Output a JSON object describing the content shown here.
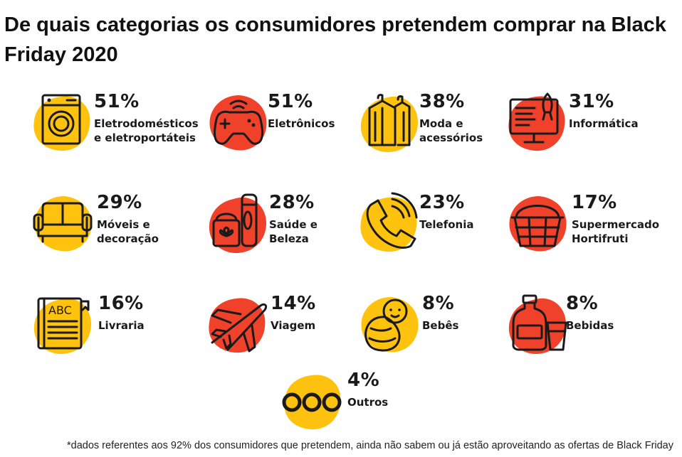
{
  "title": "De quais categorias os consumidores pretendem comprar na Black Friday 2020",
  "footnote": "*dados referentes aos 92% dos consumidores que pretendem, ainda não sabem ou já estão aproveitando as ofertas de Black Friday",
  "colors": {
    "yellow": "#FFC20E",
    "red": "#F0412B",
    "ink": "#1a1a1a"
  },
  "chart_data": {
    "type": "table",
    "title": "De quais categorias os consumidores pretendem comprar na Black Friday 2020",
    "unit": "%",
    "items": [
      {
        "label_lines": [
          "Eletrodomésticos",
          "e eletroportáteis"
        ],
        "value": 51,
        "value_label": "51%",
        "icon": "washing-machine-icon",
        "blob": "yellow"
      },
      {
        "label_lines": [
          "Eletrônicos"
        ],
        "value": 51,
        "value_label": "51%",
        "icon": "game-controller-icon",
        "blob": "red"
      },
      {
        "label_lines": [
          "Moda e",
          "acessórios"
        ],
        "value": 38,
        "value_label": "38%",
        "icon": "clothes-hanger-icon",
        "blob": "yellow"
      },
      {
        "label_lines": [
          "Informática"
        ],
        "value": 31,
        "value_label": "31%",
        "icon": "computer-monitor-icon",
        "blob": "red"
      },
      {
        "label_lines": [
          "Móveis e",
          "decoração"
        ],
        "value": 29,
        "value_label": "29%",
        "icon": "sofa-icon",
        "blob": "yellow"
      },
      {
        "label_lines": [
          "Saúde e",
          "Beleza"
        ],
        "value": 28,
        "value_label": "28%",
        "icon": "cosmetics-icon",
        "blob": "red"
      },
      {
        "label_lines": [
          "Telefonia"
        ],
        "value": 23,
        "value_label": "23%",
        "icon": "phone-handset-icon",
        "blob": "yellow"
      },
      {
        "label_lines": [
          "Supermercado",
          "Hortifruti"
        ],
        "value": 17,
        "value_label": "17%",
        "icon": "shopping-basket-icon",
        "blob": "red"
      },
      {
        "label_lines": [
          "Livraria"
        ],
        "value": 16,
        "value_label": "16%",
        "icon": "book-icon",
        "blob": "yellow"
      },
      {
        "label_lines": [
          "Viagem"
        ],
        "value": 14,
        "value_label": "14%",
        "icon": "airplane-icon",
        "blob": "red"
      },
      {
        "label_lines": [
          "Bebês"
        ],
        "value": 8,
        "value_label": "8%",
        "icon": "baby-icon",
        "blob": "yellow"
      },
      {
        "label_lines": [
          "Bebidas"
        ],
        "value": 8,
        "value_label": "8%",
        "icon": "bottle-and-glass-icon",
        "blob": "red"
      },
      {
        "label_lines": [
          "Outros"
        ],
        "value": 4,
        "value_label": "4%",
        "icon": "three-circles-icon",
        "blob": "yellow"
      }
    ]
  }
}
